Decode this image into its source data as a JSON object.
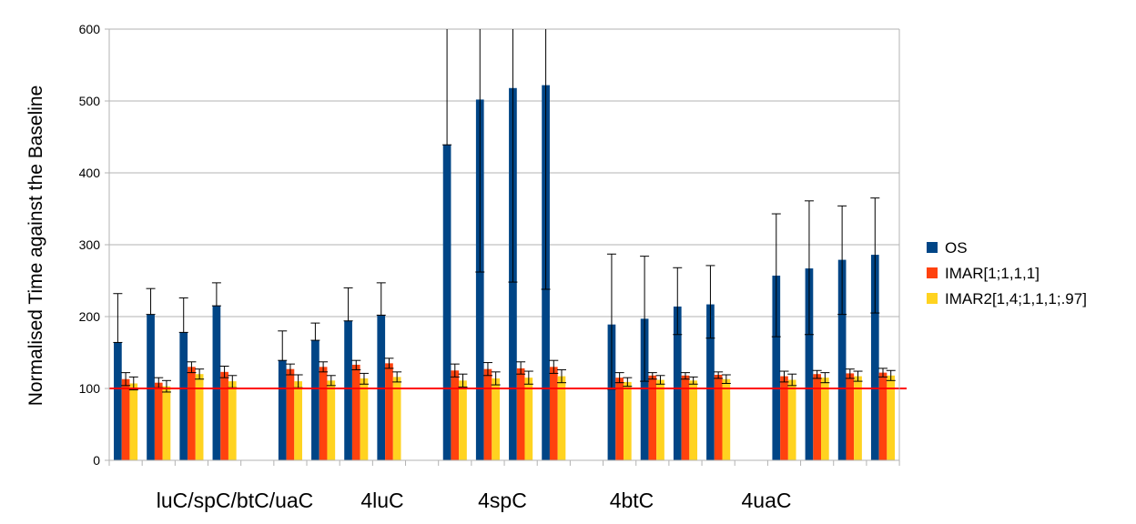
{
  "chart_data": {
    "type": "bar",
    "ylabel": "Normalised Time against the Baseline",
    "ylim": [
      0,
      600
    ],
    "yticks": [
      0,
      100,
      200,
      300,
      400,
      500,
      600
    ],
    "grid": true,
    "legend_position": "right",
    "reference_line": 100,
    "reference_color": "#ff0000",
    "group_labels": [
      "luC/spC/btC/uaC",
      "4luC",
      "4spC",
      "4btC",
      "4uaC"
    ],
    "series": [
      {
        "name": "OS",
        "color": "#004586",
        "values": [
          164,
          203,
          178,
          215,
          139,
          167,
          194,
          202,
          439,
          502,
          518,
          522,
          189,
          197,
          214,
          217,
          257,
          267,
          279,
          286
        ],
        "err_low": [
          164,
          203,
          178,
          215,
          139,
          167,
          194,
          202,
          439,
          262,
          248,
          238,
          99,
          110,
          175,
          170,
          172,
          175,
          203,
          205
        ],
        "err_high": [
          232,
          239,
          226,
          247,
          180,
          191,
          240,
          247,
          600,
          600,
          600,
          600,
          287,
          284,
          268,
          271,
          343,
          361,
          354,
          365
        ]
      },
      {
        "name": "IMAR[1;1,1,1]",
        "color": "#ff420e",
        "values": [
          113,
          108,
          130,
          123,
          127,
          130,
          133,
          135,
          125,
          127,
          128,
          130,
          115,
          118,
          118,
          119,
          117,
          120,
          121,
          122
        ],
        "err_low": [
          104,
          101,
          122,
          115,
          119,
          123,
          126,
          128,
          116,
          118,
          120,
          121,
          108,
          113,
          113,
          114,
          109,
          114,
          114,
          116
        ],
        "err_high": [
          122,
          115,
          137,
          131,
          134,
          137,
          139,
          142,
          134,
          136,
          137,
          139,
          122,
          122,
          122,
          123,
          124,
          125,
          127,
          128
        ]
      },
      {
        "name": "IMAR2[1,4;1,1,1;.97]",
        "color": "#ffd320",
        "values": [
          107,
          103,
          120,
          110,
          110,
          111,
          114,
          116,
          111,
          114,
          115,
          117,
          109,
          112,
          111,
          113,
          112,
          115,
          117,
          118
        ],
        "err_low": [
          98,
          95,
          113,
          101,
          101,
          104,
          106,
          109,
          102,
          105,
          106,
          108,
          103,
          106,
          106,
          107,
          104,
          108,
          110,
          111
        ],
        "err_high": [
          116,
          111,
          127,
          118,
          119,
          118,
          121,
          123,
          120,
          123,
          124,
          126,
          115,
          118,
          116,
          119,
          120,
          122,
          124,
          125
        ]
      }
    ]
  }
}
